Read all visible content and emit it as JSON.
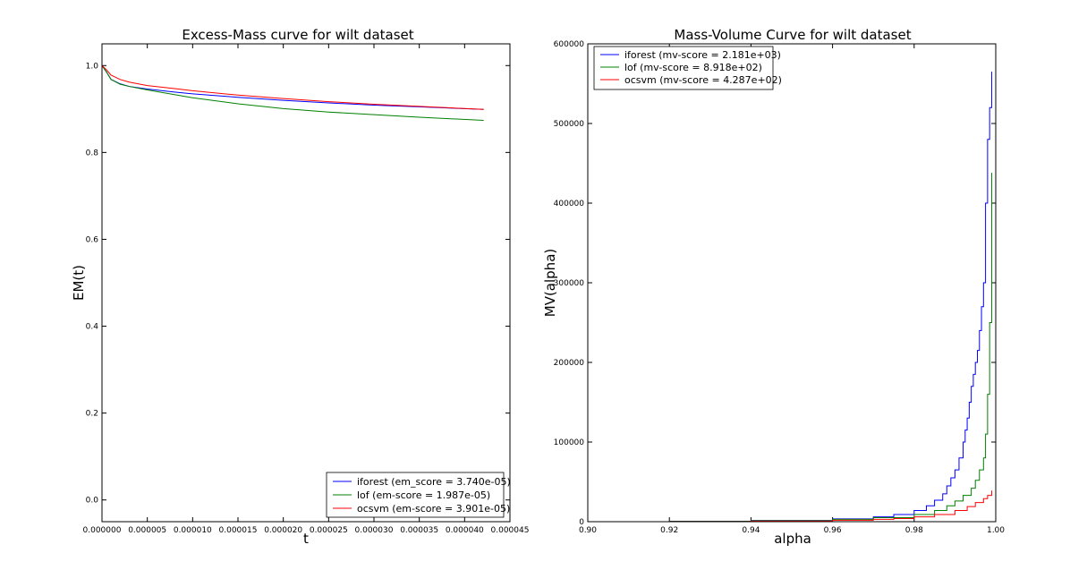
{
  "chart_data": [
    {
      "type": "line",
      "title": "Excess-Mass curve for wilt dataset",
      "xlabel": "t",
      "ylabel": "EM(t)",
      "xlim": [
        0,
        4.5e-05
      ],
      "ylim": [
        -0.05,
        1.05
      ],
      "xticks": [
        "0.000000",
        "0.000005",
        "0.000010",
        "0.000015",
        "0.000020",
        "0.000025",
        "0.000030",
        "0.000035",
        "0.000040",
        "0.000045"
      ],
      "yticks": [
        "0.0",
        "0.2",
        "0.4",
        "0.6",
        "0.8",
        "1.0"
      ],
      "grid": false,
      "legend_loc": "lower-right",
      "x": [
        0,
        5e-07,
        1e-06,
        2e-06,
        3e-06,
        5e-06,
        8e-06,
        1e-05,
        1.5e-05,
        2e-05,
        2.5e-05,
        3e-05,
        3.5e-05,
        4.21e-05
      ],
      "series": [
        {
          "name": "iforest (em_score = 3.740e-05)",
          "color": "#0000ff",
          "values": [
            1.0,
            0.985,
            0.968,
            0.958,
            0.952,
            0.946,
            0.939,
            0.935,
            0.927,
            0.92,
            0.914,
            0.909,
            0.905,
            0.899
          ]
        },
        {
          "name": "lof (em-score = 1.987e-05)",
          "color": "#008000",
          "values": [
            1.0,
            0.985,
            0.968,
            0.957,
            0.952,
            0.944,
            0.933,
            0.926,
            0.912,
            0.901,
            0.893,
            0.887,
            0.881,
            0.874
          ]
        },
        {
          "name": "ocsvm (em-score = 3.901e-05)",
          "color": "#ff0000",
          "values": [
            1.0,
            0.99,
            0.978,
            0.968,
            0.962,
            0.954,
            0.947,
            0.942,
            0.932,
            0.924,
            0.917,
            0.911,
            0.906,
            0.899
          ]
        }
      ]
    },
    {
      "type": "line",
      "title": "Mass-Volume Curve for wilt dataset",
      "xlabel": "alpha",
      "ylabel": "MV(alpha)",
      "xlim": [
        0.9,
        1.0
      ],
      "ylim": [
        0,
        600000
      ],
      "xticks": [
        "0.90",
        "0.92",
        "0.94",
        "0.96",
        "0.98",
        "1.00"
      ],
      "yticks": [
        "0",
        "100000",
        "200000",
        "300000",
        "400000",
        "500000",
        "600000"
      ],
      "grid": false,
      "legend_loc": "upper-left",
      "series": [
        {
          "name": "iforest (mv-score = 2.181e+03)",
          "color": "#0000ff",
          "x": [
            0.9,
            0.92,
            0.94,
            0.96,
            0.97,
            0.975,
            0.98,
            0.983,
            0.985,
            0.987,
            0.988,
            0.989,
            0.99,
            0.991,
            0.992,
            0.9925,
            0.993,
            0.9935,
            0.994,
            0.9945,
            0.995,
            0.9955,
            0.996,
            0.9965,
            0.997,
            0.9975,
            0.998,
            0.9985,
            0.999
          ],
          "values": [
            0,
            500,
            1500,
            3500,
            6000,
            9000,
            14000,
            20000,
            27000,
            35000,
            45000,
            55000,
            65000,
            80000,
            100000,
            115000,
            130000,
            150000,
            170000,
            185000,
            200000,
            215000,
            240000,
            270000,
            300000,
            400000,
            480000,
            520000,
            565000
          ]
        },
        {
          "name": "lof (mv-score = 8.918e+02)",
          "color": "#008000",
          "x": [
            0.9,
            0.92,
            0.94,
            0.96,
            0.97,
            0.98,
            0.985,
            0.988,
            0.99,
            0.992,
            0.994,
            0.995,
            0.996,
            0.997,
            0.9975,
            0.998,
            0.9985,
            0.999
          ],
          "values": [
            0,
            400,
            1200,
            3000,
            5000,
            9000,
            14000,
            20000,
            26000,
            33000,
            42000,
            52000,
            65000,
            80000,
            110000,
            160000,
            250000,
            438000
          ]
        },
        {
          "name": "ocsvm (mv-score = 4.287e+02)",
          "color": "#ff0000",
          "x": [
            0.9,
            0.92,
            0.94,
            0.96,
            0.97,
            0.975,
            0.98,
            0.985,
            0.99,
            0.993,
            0.995,
            0.997,
            0.998,
            0.999
          ],
          "values": [
            0,
            200,
            700,
            1800,
            3000,
            4000,
            6000,
            9000,
            14000,
            19000,
            24000,
            29000,
            33000,
            39000
          ]
        }
      ]
    }
  ]
}
